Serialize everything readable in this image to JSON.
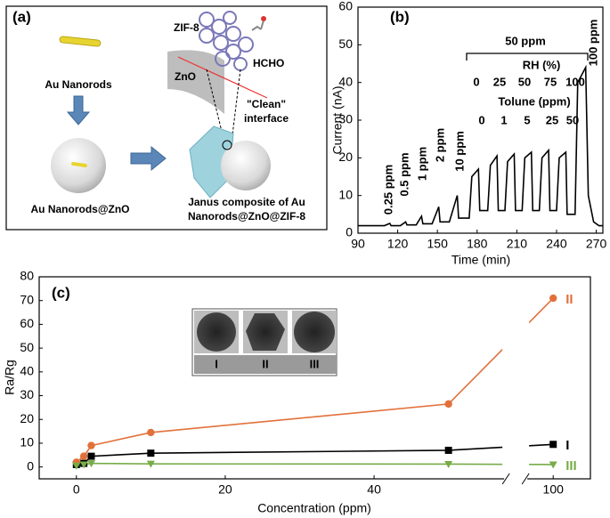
{
  "panel_a": {
    "label": "(a)",
    "rod": "Au Nanorods",
    "rod_zno": "Au Nanorods@ZnO",
    "zif": "ZIF-8",
    "zno": "ZnO",
    "gas": "HCHO",
    "interface": [
      "\"Clean\"",
      "interface"
    ],
    "janus": [
      "Janus composite of Au",
      "Nanorods@ZnO@ZIF-8"
    ]
  },
  "chart_data": [
    {
      "type": "line",
      "title": "(b)",
      "x_label": "Time (min)",
      "y_label": "Current (nA)",
      "x": [
        90,
        110,
        114,
        115,
        122,
        126,
        127,
        134,
        138,
        139,
        146,
        151,
        152,
        159,
        165,
        166,
        174,
        176,
        181,
        182,
        188,
        190,
        195,
        196,
        201,
        203,
        208,
        209,
        214,
        216,
        221,
        222,
        227,
        229,
        234,
        235,
        240,
        242,
        247,
        248,
        254,
        256,
        262,
        264,
        268,
        272,
        275
      ],
      "series": [
        {
          "color": "#000000",
          "values": [
            2,
            2,
            2.6,
            2,
            2,
            3,
            2.2,
            2.2,
            4.5,
            2.5,
            2.5,
            7,
            3,
            3,
            10,
            4,
            4,
            15,
            17,
            6,
            6,
            18,
            20.5,
            6,
            6,
            19,
            21,
            6,
            6,
            20,
            21.5,
            6,
            6,
            20,
            22,
            6,
            6,
            20,
            21.5,
            5,
            5,
            40,
            44,
            10,
            3,
            2,
            2
          ]
        }
      ],
      "xlim": [
        90,
        275
      ],
      "ylim": [
        0,
        60
      ],
      "xticks": [
        90,
        120,
        150,
        180,
        210,
        240,
        270
      ],
      "yticks": [
        0,
        10,
        20,
        30,
        40,
        50,
        60
      ],
      "annotations": {
        "concentrations": [
          "0.25 ppm",
          "0.5 ppm",
          "1 ppm",
          "2 ppm",
          "10 ppm",
          "100 ppm"
        ],
        "group": "50 ppm",
        "rh_title": "RH (%)",
        "rh_values": [
          "0",
          "25",
          "50",
          "75",
          "100"
        ],
        "toluene_title": "Tolune (ppm)",
        "toluene_values": [
          "0",
          "1",
          "5",
          "25",
          "50"
        ]
      }
    },
    {
      "type": "line",
      "title": "(c)",
      "x_label": "Concentration (ppm)",
      "y_label": "Ra/Rg",
      "x": [
        0,
        1,
        2,
        10,
        50,
        100
      ],
      "series": [
        {
          "name": "I",
          "color": "#000000",
          "marker": "square",
          "values": [
            1,
            1.5,
            4.5,
            5.8,
            7,
            9.5
          ]
        },
        {
          "name": "II",
          "color": "#e2703a",
          "marker": "circle",
          "values": [
            2,
            4.5,
            9,
            14.5,
            26.5,
            71
          ]
        },
        {
          "name": "III",
          "color": "#77ac48",
          "marker": "triangle-down",
          "values": [
            0.5,
            1,
            1.5,
            1.3,
            1.2,
            1
          ]
        }
      ],
      "xlim": [
        -5,
        105
      ],
      "x_break": [
        57,
        97
      ],
      "ylim": [
        -5,
        80
      ],
      "xticks": [
        0,
        20,
        40,
        100
      ],
      "yticks": [
        0,
        10,
        20,
        30,
        40,
        50,
        60,
        70,
        80
      ],
      "inset_labels": [
        "I",
        "II",
        "III"
      ]
    }
  ]
}
